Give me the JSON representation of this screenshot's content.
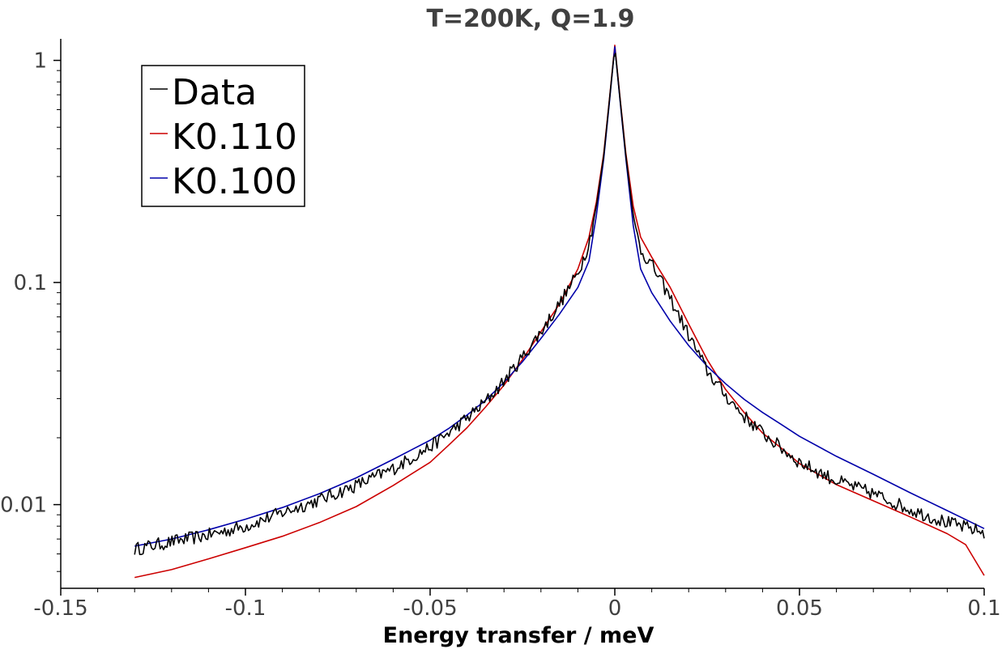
{
  "chart_data": {
    "type": "line",
    "title": "T=200K, Q=1.9",
    "xlabel": "Energy transfer / meV",
    "ylabel": "",
    "xlim": [
      -0.15,
      0.1
    ],
    "ylim": [
      0.0042,
      1.25
    ],
    "yscale": "log",
    "xticks": [
      {
        "value": -0.15,
        "label": "-0.15"
      },
      {
        "value": -0.1,
        "label": "-0.1"
      },
      {
        "value": -0.05,
        "label": "-0.05"
      },
      {
        "value": 0,
        "label": "0"
      },
      {
        "value": 0.05,
        "label": "0.05"
      },
      {
        "value": 0.1,
        "label": "0.1"
      }
    ],
    "yticks": [
      {
        "value": 0.01,
        "label": "0.01"
      },
      {
        "value": 0.1,
        "label": "0.1"
      },
      {
        "value": 1,
        "label": "1"
      }
    ],
    "grid": false,
    "legend_position": "top-left",
    "series": [
      {
        "name": "Data",
        "color": "#000000",
        "noisy": true,
        "x": [
          -0.13,
          -0.12,
          -0.11,
          -0.1,
          -0.09,
          -0.08,
          -0.07,
          -0.06,
          -0.05,
          -0.045,
          -0.04,
          -0.035,
          -0.03,
          -0.025,
          -0.02,
          -0.015,
          -0.01,
          -0.007,
          -0.005,
          -0.003,
          -0.0015,
          0,
          0.0015,
          0.003,
          0.005,
          0.007,
          0.01,
          0.015,
          0.02,
          0.025,
          0.03,
          0.035,
          0.04,
          0.045,
          0.05,
          0.06,
          0.07,
          0.08,
          0.09,
          0.1
        ],
        "y": [
          0.0063,
          0.0068,
          0.0073,
          0.008,
          0.0092,
          0.0105,
          0.0122,
          0.0145,
          0.0182,
          0.021,
          0.0245,
          0.029,
          0.036,
          0.046,
          0.06,
          0.08,
          0.11,
          0.15,
          0.22,
          0.37,
          0.65,
          1.15,
          0.65,
          0.37,
          0.2,
          0.14,
          0.12,
          0.085,
          0.058,
          0.04,
          0.031,
          0.025,
          0.021,
          0.018,
          0.0155,
          0.0128,
          0.0112,
          0.0095,
          0.0083,
          0.0075
        ]
      },
      {
        "name": "K0.110",
        "color": "#cc0000",
        "noisy": false,
        "x": [
          -0.13,
          -0.12,
          -0.11,
          -0.1,
          -0.09,
          -0.08,
          -0.07,
          -0.06,
          -0.05,
          -0.045,
          -0.04,
          -0.035,
          -0.03,
          -0.025,
          -0.02,
          -0.015,
          -0.01,
          -0.007,
          -0.005,
          -0.003,
          -0.0015,
          0,
          0.0015,
          0.003,
          0.005,
          0.007,
          0.01,
          0.015,
          0.02,
          0.025,
          0.03,
          0.035,
          0.04,
          0.045,
          0.05,
          0.06,
          0.07,
          0.08,
          0.09,
          0.095,
          0.1
        ],
        "y": [
          0.0047,
          0.0051,
          0.0057,
          0.0064,
          0.0072,
          0.0083,
          0.0098,
          0.0122,
          0.0155,
          0.0185,
          0.0222,
          0.0275,
          0.0345,
          0.045,
          0.06,
          0.08,
          0.115,
          0.16,
          0.23,
          0.38,
          0.66,
          1.17,
          0.66,
          0.38,
          0.22,
          0.16,
          0.13,
          0.095,
          0.065,
          0.045,
          0.033,
          0.026,
          0.021,
          0.018,
          0.0153,
          0.0123,
          0.0104,
          0.0088,
          0.0074,
          0.0066,
          0.0048
        ]
      },
      {
        "name": "K0.100",
        "color": "#0000aa",
        "noisy": false,
        "x": [
          -0.13,
          -0.12,
          -0.11,
          -0.1,
          -0.09,
          -0.08,
          -0.07,
          -0.06,
          -0.05,
          -0.045,
          -0.04,
          -0.035,
          -0.03,
          -0.025,
          -0.02,
          -0.015,
          -0.01,
          -0.007,
          -0.005,
          -0.003,
          -0.0015,
          0,
          0.0015,
          0.003,
          0.005,
          0.007,
          0.01,
          0.015,
          0.02,
          0.025,
          0.03,
          0.035,
          0.04,
          0.045,
          0.05,
          0.06,
          0.07,
          0.08,
          0.09,
          0.1
        ],
        "y": [
          0.0065,
          0.007,
          0.0077,
          0.0086,
          0.0097,
          0.0112,
          0.0132,
          0.016,
          0.0195,
          0.022,
          0.0253,
          0.0295,
          0.0355,
          0.044,
          0.056,
          0.072,
          0.095,
          0.125,
          0.2,
          0.36,
          0.64,
          1.15,
          0.64,
          0.36,
          0.18,
          0.115,
          0.09,
          0.067,
          0.052,
          0.042,
          0.035,
          0.0298,
          0.026,
          0.023,
          0.0203,
          0.0165,
          0.0137,
          0.0113,
          0.0094,
          0.0078
        ]
      }
    ]
  }
}
